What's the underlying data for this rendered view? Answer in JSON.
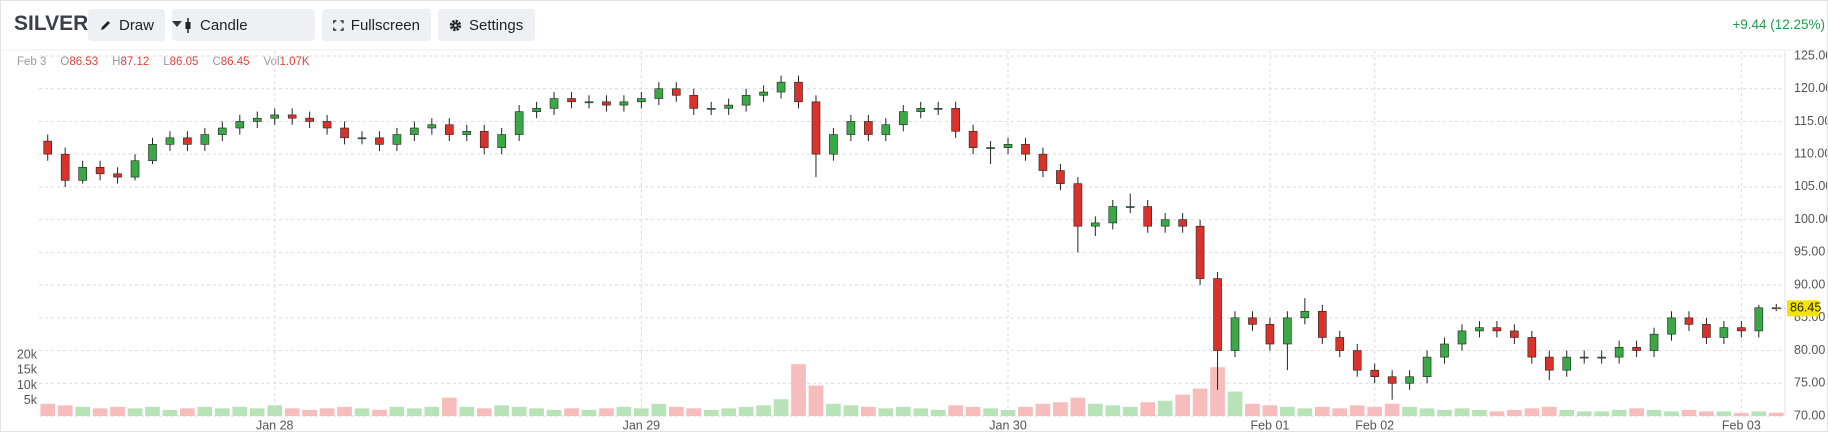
{
  "toolbar": {
    "symbol": "SILVER",
    "buttons": [
      "Draw",
      "Candle",
      "Fullscreen",
      "Settings"
    ],
    "change": "+9.44 (12.25%)"
  },
  "legend": {
    "date": "Feb 3",
    "labels": [
      "O",
      "H",
      "L",
      "C",
      "Vol"
    ],
    "volume": "1.07K"
  },
  "chart_data": {
    "type": "candlestick",
    "open": [
      112,
      110,
      106,
      108,
      107,
      106.5,
      109,
      111.5,
      112.5,
      111.5,
      113,
      114,
      115,
      115.5,
      116,
      115.5,
      115,
      114,
      112.5,
      112.5,
      111.5,
      113,
      114,
      114.5,
      113,
      113.5,
      111,
      113,
      116.5,
      117,
      118.5,
      118,
      118,
      117.5,
      118,
      118.5,
      120,
      119,
      117,
      117,
      117.5,
      119,
      119.5,
      121,
      118,
      110,
      113,
      115,
      113,
      114.5,
      116.5,
      117,
      117,
      113.5,
      111,
      111,
      111.5,
      110,
      107.5,
      105.5,
      99,
      99.5,
      102,
      102,
      99,
      100,
      99,
      91,
      80,
      85,
      84,
      81,
      85,
      86,
      82,
      80,
      77,
      76,
      75,
      76,
      79,
      81,
      83,
      83.5,
      83,
      82,
      79,
      77,
      79,
      79,
      79,
      80.5,
      80,
      82.5,
      85,
      84,
      82,
      83.5,
      83,
      86.53
    ],
    "high": [
      113,
      111,
      109,
      109,
      108,
      110,
      112.5,
      113.5,
      113.5,
      114,
      115,
      116,
      116.5,
      117,
      117,
      116.5,
      116,
      115,
      113.5,
      113.5,
      114,
      115,
      115.5,
      115.5,
      114.5,
      114.5,
      114,
      117.5,
      118,
      119.5,
      119.5,
      119,
      119,
      119,
      119.5,
      121,
      121,
      120,
      118,
      118.5,
      120,
      120.5,
      122,
      122,
      119,
      114,
      116,
      116,
      115.5,
      117.5,
      118,
      118,
      118,
      114.5,
      112,
      112.5,
      112.5,
      111,
      108.5,
      106.5,
      100.5,
      103,
      104,
      103,
      101,
      101,
      100,
      92,
      86,
      86,
      85,
      86,
      88,
      87,
      83,
      81,
      78,
      77,
      77,
      80,
      82,
      84,
      84.5,
      84.5,
      84,
      83,
      80,
      80,
      80,
      80,
      81.5,
      81.5,
      83.5,
      86,
      86,
      85,
      84.5,
      84.5,
      87,
      87.12
    ],
    "low": [
      109,
      105,
      105.5,
      106,
      105.5,
      106,
      108.5,
      110.5,
      110.5,
      110.5,
      112,
      113,
      114,
      114.5,
      114.5,
      114,
      113,
      111.5,
      111.5,
      110.5,
      110.5,
      112,
      113,
      112,
      112,
      110,
      110,
      112,
      115.5,
      116,
      117,
      117,
      116.5,
      116.5,
      117,
      117.5,
      118,
      116,
      116,
      116,
      116.5,
      118,
      118.5,
      117,
      106.5,
      109,
      112,
      112,
      112,
      113.5,
      115.5,
      116,
      112.5,
      110,
      108.5,
      110,
      109,
      106.5,
      104.5,
      95,
      97.5,
      98.5,
      101,
      98,
      98,
      98,
      90,
      74,
      79,
      83,
      80,
      77,
      84,
      81,
      79,
      76,
      75,
      72.5,
      74,
      75,
      78,
      80,
      82,
      82,
      81,
      78,
      75.5,
      76,
      78,
      78,
      78,
      79,
      79,
      81.5,
      83,
      81,
      81,
      82,
      82,
      86.05
    ],
    "close": [
      110,
      106,
      108,
      107,
      106.5,
      109,
      111.5,
      112.5,
      111.5,
      113,
      114,
      115,
      115.5,
      116,
      115.5,
      115,
      114,
      112.5,
      112.5,
      111.5,
      113,
      114,
      114.5,
      113,
      113.5,
      111,
      113,
      116.5,
      117,
      118.5,
      118,
      118,
      117.5,
      118,
      118.5,
      120,
      119,
      117,
      117,
      117.5,
      119,
      119.5,
      121,
      118,
      110,
      113,
      115,
      113,
      114.5,
      116.5,
      117,
      117,
      113.5,
      111,
      111,
      111.5,
      110,
      107.5,
      105.5,
      99,
      99.5,
      102,
      102,
      99,
      100,
      99,
      91,
      80,
      85,
      84,
      81,
      85,
      86,
      82,
      80,
      77,
      76,
      75,
      76,
      79,
      81,
      83,
      83.5,
      83,
      82,
      79,
      77,
      79,
      79,
      79,
      80.5,
      80,
      82.5,
      85,
      84,
      82,
      83.5,
      83,
      86.53,
      86.45
    ],
    "volume": [
      4000,
      3500,
      3000,
      2500,
      3000,
      2500,
      3000,
      2000,
      2500,
      3000,
      2500,
      3000,
      2500,
      3500,
      2500,
      2000,
      2500,
      3000,
      2500,
      2000,
      3000,
      2500,
      3000,
      6000,
      3000,
      2500,
      3500,
      3000,
      2500,
      2000,
      2500,
      2000,
      2500,
      3000,
      2500,
      4000,
      3000,
      2500,
      2000,
      2500,
      3000,
      3500,
      5500,
      17000,
      10000,
      4000,
      3500,
      3000,
      2500,
      3000,
      2500,
      2000,
      3500,
      3000,
      2500,
      2000,
      3000,
      4000,
      4500,
      6000,
      4000,
      3500,
      3000,
      4500,
      5000,
      7000,
      9000,
      16000,
      8000,
      4000,
      3500,
      3000,
      2500,
      3000,
      2500,
      3500,
      3000,
      4000,
      3000,
      2500,
      2000,
      2500,
      2000,
      1500,
      2000,
      2500,
      3000,
      2000,
      1500,
      1500,
      2000,
      2500,
      2000,
      1500,
      2000,
      1500,
      1500,
      1000,
      1500,
      1070
    ],
    "xlim": [
      -0.5,
      99.5
    ],
    "xticks": [
      {
        "value": 13,
        "label": "Jan 28"
      },
      {
        "value": 34,
        "label": "Jan 29"
      },
      {
        "value": 55,
        "label": "Jan 30"
      },
      {
        "value": 70,
        "label": "Feb 01"
      },
      {
        "value": 76,
        "label": "Feb 02"
      },
      {
        "value": 97,
        "label": "Feb 03"
      }
    ],
    "ylim": [
      70,
      125
    ],
    "yticks": [
      {
        "value": 70,
        "label": "70.00"
      },
      {
        "value": 75,
        "label": "75.00"
      },
      {
        "value": 80,
        "label": "80.00"
      },
      {
        "value": 85,
        "label": "85.00"
      },
      {
        "value": 90,
        "label": "90.00"
      },
      {
        "value": 95,
        "label": "95.00"
      },
      {
        "value": 100,
        "label": "100.00"
      },
      {
        "value": 105,
        "label": "105.00"
      },
      {
        "value": 110,
        "label": "110.00"
      },
      {
        "value": 115,
        "label": "115.00"
      },
      {
        "value": 120,
        "label": "120.00"
      },
      {
        "value": 125,
        "label": "125.00"
      }
    ],
    "y2lim": [
      0,
      20000
    ],
    "y2ticks": [
      {
        "value": 5000,
        "label": "5k"
      },
      {
        "value": 10000,
        "label": "10k"
      },
      {
        "value": 15000,
        "label": "15k"
      },
      {
        "value": 20000,
        "label": "20k"
      }
    ],
    "grid": true,
    "up_color": "#3aa845",
    "down_color": "#d8322b",
    "wick_color": "#222222",
    "volume_up_color": "#b8e2b8",
    "volume_down_color": "#f7bcbc",
    "last_price_color": "#f5e400"
  }
}
